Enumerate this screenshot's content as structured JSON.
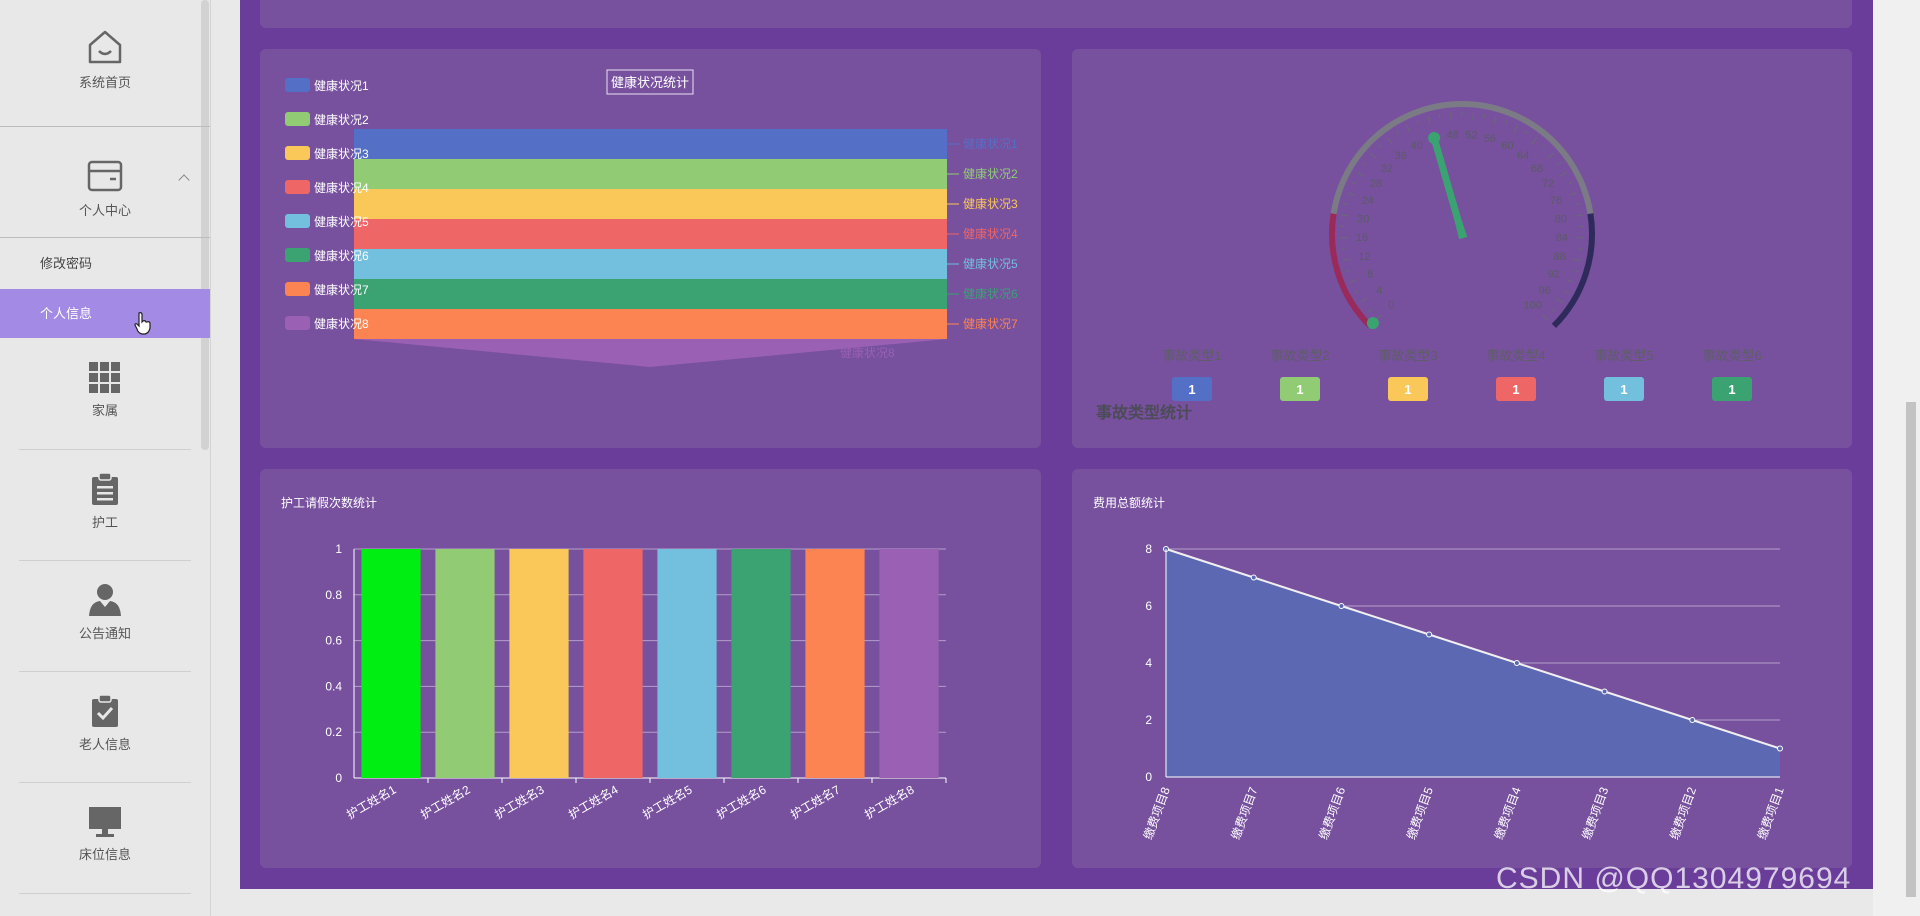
{
  "sidebar": {
    "home": "系统首页",
    "personal_center": "个人中心",
    "change_password": "修改密码",
    "personal_info": "个人信息",
    "family": "家属",
    "caregiver": "护工",
    "notice": "公告通知",
    "elder_info": "老人信息",
    "bed_info": "床位信息"
  },
  "panels": {
    "health_title": "健康状况统计",
    "accident_title": "事故类型统计",
    "leave_title": "护工请假次数统计",
    "fee_title": "费用总额统计"
  },
  "colors": {
    "c1": "#5470c6",
    "c2": "#91cc75",
    "c3": "#fac858",
    "c4": "#ee6666",
    "c5": "#73c0de",
    "c6": "#3ba272",
    "c7": "#fc8452",
    "c8": "#9a60b4",
    "bright_green": "#00ee11"
  },
  "chart_data": [
    {
      "type": "funnel",
      "title": "健康状况统计",
      "legend": [
        "健康状况1",
        "健康状况2",
        "健康状况3",
        "健康状况4",
        "健康状况5",
        "健康状况6",
        "健康状况7",
        "健康状况8"
      ],
      "labels": [
        "健康状况1",
        "健康状况2",
        "健康状况3",
        "健康状况4",
        "健康状况5",
        "健康状况6",
        "健康状况7",
        "健康状况8"
      ],
      "legend_placement": "left"
    },
    {
      "type": "gauge",
      "title": "事故类型统计",
      "min": 0,
      "max": 100,
      "ticks": [
        "0",
        "4",
        "8",
        "12",
        "16",
        "20",
        "24",
        "28",
        "32",
        "36",
        "40",
        "44",
        "48",
        "52",
        "56",
        "60",
        "64",
        "68",
        "72",
        "76",
        "80",
        "84",
        "88",
        "92",
        "96",
        "100"
      ],
      "value": 44,
      "categories": [
        "事故类型1",
        "事故类型2",
        "事故类型3",
        "事故类型4",
        "事故类型5",
        "事故类型6"
      ],
      "values": [
        1,
        1,
        1,
        1,
        1,
        1
      ]
    },
    {
      "type": "bar",
      "title": "护工请假次数统计",
      "categories": [
        "护工姓名1",
        "护工姓名2",
        "护工姓名3",
        "护工姓名4",
        "护工姓名5",
        "护工姓名6",
        "护工姓名7",
        "护工姓名8"
      ],
      "values": [
        1,
        1,
        1,
        1,
        1,
        1,
        1,
        1
      ],
      "yticks": [
        "0",
        "0.2",
        "0.4",
        "0.6",
        "0.8",
        "1"
      ],
      "ylim": [
        0,
        1
      ]
    },
    {
      "type": "area",
      "title": "费用总额统计",
      "categories": [
        "缴费项目8",
        "缴费项目7",
        "缴费项目6",
        "缴费项目5",
        "缴费项目4",
        "缴费项目3",
        "缴费项目2",
        "缴费项目1"
      ],
      "values": [
        8,
        7,
        6,
        5,
        4,
        3,
        2,
        1
      ],
      "yticks": [
        "0",
        "2",
        "4",
        "6",
        "8"
      ],
      "ylim": [
        0,
        8
      ]
    }
  ],
  "watermark": "CSDN @QQ1304979694"
}
